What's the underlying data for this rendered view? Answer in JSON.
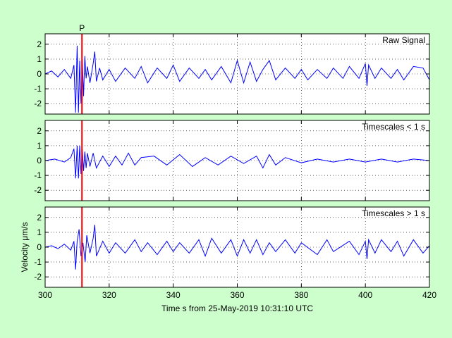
{
  "chart_data": {
    "type": "line",
    "xlabel": "Time s from 25-May-2019 10:31:10 UTC",
    "ylabel": "Velocity μm/s",
    "xlim": [
      300,
      420
    ],
    "xticks": [
      300,
      320,
      340,
      360,
      380,
      400,
      420
    ],
    "ylim": [
      -2.7,
      2.7
    ],
    "yticks": [
      -2,
      -1,
      0,
      1,
      2
    ],
    "grid": true,
    "pick_marker": {
      "label": "P",
      "x": 311.5,
      "color": "#ff0000"
    },
    "line_color": "#0000ff",
    "panels": [
      {
        "title": "Raw Signal",
        "series": [
          {
            "x": [
              300,
              302,
              304,
              306,
              308,
              309,
              309.5,
              310,
              310.4,
              310.8,
              311.2,
              311.6,
              312,
              312.4,
              312.8,
              313.2,
              314,
              315,
              315.5,
              316,
              317,
              318,
              320,
              322,
              325,
              328,
              330,
              332,
              335,
              338,
              340,
              342,
              345,
              348,
              350,
              352,
              355,
              358,
              360,
              362,
              364,
              366,
              368,
              370,
              372,
              375,
              378,
              380,
              382,
              385,
              388,
              390,
              393,
              395,
              398,
              400,
              400.5,
              401,
              403,
              405,
              408,
              410,
              412,
              415,
              418,
              420
            ],
            "y": [
              0,
              0.2,
              -0.2,
              0.3,
              -0.3,
              0.6,
              -2.6,
              1.9,
              -2.6,
              0.9,
              -2.0,
              1.0,
              -1.5,
              1.2,
              -0.3,
              0.5,
              -0.6,
              0.7,
              1.5,
              -0.5,
              0.4,
              -0.4,
              0.3,
              -0.5,
              0.4,
              -0.3,
              0.5,
              -0.6,
              0.4,
              -0.3,
              0.6,
              -0.5,
              0.4,
              -0.3,
              0.3,
              -0.4,
              0.5,
              -0.6,
              0.9,
              -0.6,
              0.8,
              -0.5,
              0.3,
              0.9,
              -0.4,
              0.4,
              -0.3,
              0.3,
              -0.4,
              0.3,
              -0.3,
              0.4,
              -0.3,
              0.5,
              -0.3,
              0.7,
              -0.8,
              0.6,
              -0.3,
              0.4,
              -0.3,
              0.3,
              -0.4,
              0.5,
              0.4,
              -0.4
            ]
          }
        ]
      },
      {
        "title": "Timescales < 1 s",
        "series": [
          {
            "x": [
              300,
              303,
              306,
              308,
              309,
              309.5,
              310,
              310.4,
              310.8,
              311.2,
              311.6,
              312,
              312.4,
              312.8,
              313.2,
              314,
              315,
              316,
              318,
              320,
              322,
              324,
              326,
              328,
              330,
              334,
              338,
              342,
              346,
              350,
              354,
              358,
              362,
              366,
              368,
              370,
              372,
              375,
              380,
              385,
              390,
              395,
              400,
              405,
              410,
              415,
              420
            ],
            "y": [
              0,
              0.1,
              -0.1,
              0.2,
              0.8,
              -1.2,
              1.0,
              -1.2,
              1.0,
              -0.9,
              0.8,
              -0.7,
              0.6,
              -0.5,
              0.5,
              -0.4,
              0.5,
              -0.5,
              0.3,
              -0.4,
              0.3,
              -0.3,
              0.5,
              -0.3,
              0.2,
              0.3,
              -0.3,
              0.4,
              -0.4,
              0.2,
              -0.3,
              0.3,
              -0.2,
              0.3,
              -0.5,
              0.4,
              -0.3,
              0.2,
              -0.15,
              0.1,
              -0.1,
              0.1,
              -0.1,
              0.1,
              -0.1,
              0.1,
              0
            ]
          }
        ]
      },
      {
        "title": "Timescales > 1 s",
        "series": [
          {
            "x": [
              300,
              302,
              304,
              306,
              308,
              309,
              309.5,
              310,
              310.6,
              311.2,
              311.8,
              312.5,
              313,
              314,
              315,
              315.5,
              316,
              318,
              320,
              322,
              325,
              328,
              330,
              332,
              335,
              338,
              340,
              342,
              345,
              348,
              350,
              352,
              355,
              358,
              360,
              362,
              364,
              366,
              368,
              370,
              372,
              375,
              378,
              380,
              385,
              388,
              390,
              395,
              398,
              400,
              400.5,
              401,
              403,
              405,
              408,
              410,
              412,
              415,
              418,
              420
            ],
            "y": [
              0,
              0.1,
              -0.1,
              0.2,
              -0.2,
              0.4,
              -1.5,
              0.4,
              1.2,
              -0.6,
              0.3,
              -1.0,
              0.8,
              -0.4,
              0.6,
              1.5,
              -0.6,
              0.4,
              -0.4,
              0.3,
              -0.4,
              0.5,
              -0.3,
              0.3,
              -0.5,
              0.4,
              -0.3,
              0.3,
              -0.4,
              0.5,
              -0.6,
              0.6,
              -0.4,
              0.5,
              -0.6,
              0.5,
              -0.4,
              0.5,
              -0.5,
              0.3,
              -0.3,
              0.5,
              -0.4,
              0.3,
              -0.5,
              0.5,
              -0.3,
              0.4,
              -0.5,
              0.4,
              -0.8,
              0.5,
              -0.4,
              0.5,
              -0.3,
              0.4,
              -0.6,
              0.5,
              -0.4,
              0.1
            ]
          }
        ]
      }
    ]
  }
}
